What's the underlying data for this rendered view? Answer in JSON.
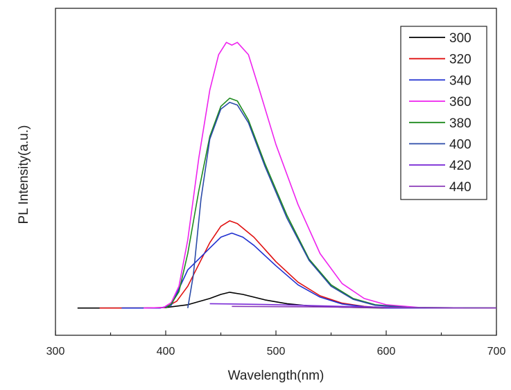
{
  "chart_data": {
    "type": "line",
    "title": "",
    "xlabel": "Wavelength(nm)",
    "ylabel": "PL Intensity(a.u.)",
    "xlim": [
      300,
      700
    ],
    "ylim": [
      -0.1,
      1.1
    ],
    "x_ticks": [
      300,
      400,
      500,
      600,
      700
    ],
    "y_ticks_shown": false,
    "grid": false,
    "legend_position": "top-right",
    "series": [
      {
        "name": "300",
        "color": "#000000",
        "points": [
          [
            320,
            0.0
          ],
          [
            380,
            0.0
          ],
          [
            400,
            0.002
          ],
          [
            420,
            0.012
          ],
          [
            440,
            0.035
          ],
          [
            450,
            0.05
          ],
          [
            458,
            0.058
          ],
          [
            470,
            0.05
          ],
          [
            490,
            0.03
          ],
          [
            510,
            0.016
          ],
          [
            530,
            0.008
          ],
          [
            560,
            0.003
          ],
          [
            600,
            0.0
          ],
          [
            700,
            0.0
          ]
        ]
      },
      {
        "name": "320",
        "color": "#e01010",
        "points": [
          [
            340,
            0.0
          ],
          [
            390,
            0.0
          ],
          [
            400,
            0.003
          ],
          [
            410,
            0.025
          ],
          [
            420,
            0.08
          ],
          [
            430,
            0.16
          ],
          [
            440,
            0.24
          ],
          [
            450,
            0.3
          ],
          [
            458,
            0.32
          ],
          [
            465,
            0.31
          ],
          [
            480,
            0.26
          ],
          [
            500,
            0.17
          ],
          [
            520,
            0.095
          ],
          [
            540,
            0.045
          ],
          [
            560,
            0.018
          ],
          [
            580,
            0.006
          ],
          [
            600,
            0.0
          ],
          [
            700,
            0.0
          ]
        ]
      },
      {
        "name": "340",
        "color": "#1f2fd0",
        "points": [
          [
            360,
            0.0
          ],
          [
            395,
            0.0
          ],
          [
            405,
            0.01
          ],
          [
            420,
            0.14
          ],
          [
            430,
            0.18
          ],
          [
            440,
            0.22
          ],
          [
            450,
            0.26
          ],
          [
            460,
            0.275
          ],
          [
            470,
            0.26
          ],
          [
            480,
            0.23
          ],
          [
            500,
            0.155
          ],
          [
            520,
            0.085
          ],
          [
            540,
            0.04
          ],
          [
            560,
            0.015
          ],
          [
            580,
            0.005
          ],
          [
            600,
            0.0
          ],
          [
            700,
            0.0
          ]
        ]
      },
      {
        "name": "360",
        "color": "#ee22ee",
        "points": [
          [
            380,
            0.0
          ],
          [
            398,
            0.002
          ],
          [
            405,
            0.02
          ],
          [
            412,
            0.08
          ],
          [
            420,
            0.25
          ],
          [
            430,
            0.55
          ],
          [
            440,
            0.8
          ],
          [
            448,
            0.93
          ],
          [
            455,
            0.975
          ],
          [
            460,
            0.965
          ],
          [
            465,
            0.975
          ],
          [
            475,
            0.93
          ],
          [
            485,
            0.8
          ],
          [
            500,
            0.6
          ],
          [
            520,
            0.38
          ],
          [
            540,
            0.2
          ],
          [
            560,
            0.09
          ],
          [
            580,
            0.035
          ],
          [
            600,
            0.012
          ],
          [
            630,
            0.002
          ],
          [
            700,
            0.0
          ]
        ]
      },
      {
        "name": "380",
        "color": "#1e8a1e",
        "points": [
          [
            400,
            0.0
          ],
          [
            405,
            0.015
          ],
          [
            412,
            0.06
          ],
          [
            420,
            0.2
          ],
          [
            430,
            0.43
          ],
          [
            440,
            0.63
          ],
          [
            450,
            0.74
          ],
          [
            458,
            0.77
          ],
          [
            465,
            0.76
          ],
          [
            475,
            0.69
          ],
          [
            490,
            0.53
          ],
          [
            510,
            0.34
          ],
          [
            530,
            0.18
          ],
          [
            550,
            0.085
          ],
          [
            570,
            0.035
          ],
          [
            590,
            0.012
          ],
          [
            620,
            0.002
          ],
          [
            700,
            0.0
          ]
        ]
      },
      {
        "name": "400",
        "color": "#2a4aa8",
        "points": [
          [
            420,
            0.0
          ],
          [
            425,
            0.12
          ],
          [
            432,
            0.4
          ],
          [
            440,
            0.62
          ],
          [
            450,
            0.73
          ],
          [
            458,
            0.755
          ],
          [
            465,
            0.745
          ],
          [
            475,
            0.68
          ],
          [
            490,
            0.52
          ],
          [
            510,
            0.33
          ],
          [
            530,
            0.175
          ],
          [
            550,
            0.08
          ],
          [
            570,
            0.032
          ],
          [
            590,
            0.01
          ],
          [
            620,
            0.002
          ],
          [
            700,
            0.0
          ]
        ]
      },
      {
        "name": "420",
        "color": "#7a2ad6",
        "points": [
          [
            440,
            0.016
          ],
          [
            460,
            0.015
          ],
          [
            490,
            0.013
          ],
          [
            520,
            0.01
          ],
          [
            560,
            0.006
          ],
          [
            600,
            0.003
          ],
          [
            640,
            0.001
          ],
          [
            670,
            0.0
          ]
        ]
      },
      {
        "name": "440",
        "color": "#8a3ab8",
        "points": [
          [
            460,
            0.006
          ],
          [
            500,
            0.005
          ],
          [
            540,
            0.004
          ],
          [
            580,
            0.002
          ],
          [
            620,
            0.001
          ],
          [
            700,
            0.0
          ]
        ]
      }
    ]
  }
}
